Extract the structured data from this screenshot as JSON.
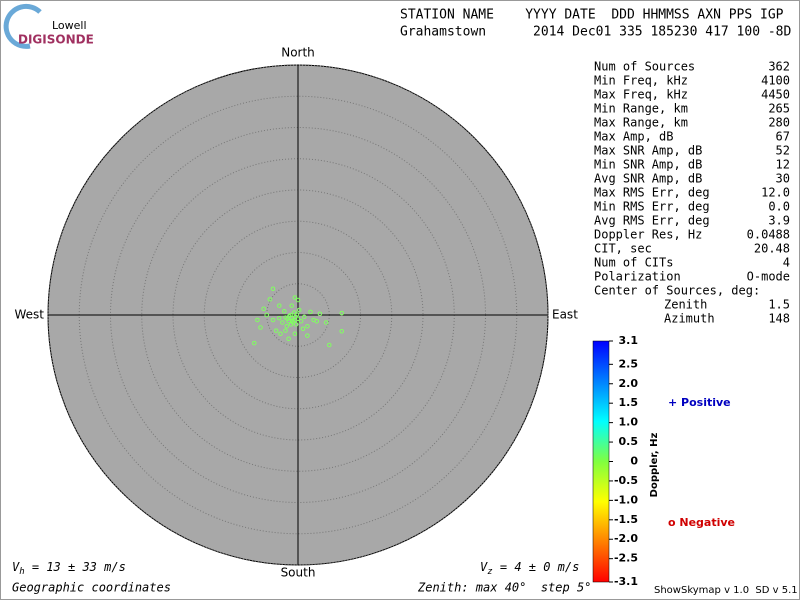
{
  "logo": {
    "top": "Lowell",
    "bottom": "DIGISONDE"
  },
  "header": {
    "columns": "STATION NAME    YYYY DATE  DDD HHMMSS AXN PPS IGP",
    "values": "Grahamstown      2014 Dec01 335 185230 417 100 -8D"
  },
  "stats": [
    [
      "Num of Sources",
      "362"
    ],
    [
      "Min Freq, kHz",
      "4100"
    ],
    [
      "Max Freq, kHz",
      "4450"
    ],
    [
      "Min Range, km",
      "265"
    ],
    [
      "Max Range, km",
      "280"
    ],
    [
      "Max Amp, dB",
      "67"
    ],
    [
      "Max SNR Amp, dB",
      "52"
    ],
    [
      "Min SNR Amp, dB",
      "12"
    ],
    [
      "Avg SNR Amp, dB",
      "30"
    ],
    [
      "Max RMS Err, deg",
      "12.0"
    ],
    [
      "Min RMS Err, deg",
      "0.0"
    ],
    [
      "Avg RMS Err, deg",
      "3.9"
    ],
    [
      "Doppler Res, Hz",
      "0.0488"
    ],
    [
      "CIT, sec",
      "20.48"
    ],
    [
      "Num of CITs",
      "4"
    ],
    [
      "Polarization",
      "O-mode"
    ]
  ],
  "center": {
    "title": "Center of Sources, deg:",
    "rows": [
      [
        "Zenith",
        "1.5"
      ],
      [
        "Azimuth",
        "148"
      ]
    ]
  },
  "chart_data": {
    "type": "scatter",
    "directions": {
      "north": "North",
      "south": "South",
      "east": "East",
      "west": "West"
    },
    "rlim": [
      0,
      40
    ],
    "rticks": [
      5,
      10,
      15,
      20,
      25,
      30,
      35,
      40
    ],
    "color": "#80ff60",
    "x": [
      -1,
      -0.5,
      -1.5,
      -0.8,
      0,
      -2,
      -1.2,
      -0.3,
      -2.5,
      0.5,
      -1.8,
      -3,
      1,
      -0.6,
      -2.2,
      0.2,
      -4,
      -5,
      -6,
      -7,
      -3.5,
      1.5,
      2.5,
      3,
      4.5,
      7,
      7,
      5,
      1.5,
      -0.5,
      -1.5,
      -4.5,
      -4,
      -0.5,
      0,
      -3,
      -5.5,
      -6.5,
      -2.8,
      2,
      3.5,
      0.8,
      -1,
      -2,
      -0.2,
      -1.4,
      -0.9,
      -0.4,
      -1.7,
      -1.1
    ],
    "y": [
      -0.5,
      -0.8,
      -1,
      -1.2,
      -0.6,
      -0.4,
      0,
      -1.5,
      -1.2,
      -1,
      -1.8,
      -0.5,
      -0.3,
      0.4,
      0.6,
      0.8,
      -0.8,
      0,
      -2,
      -4.5,
      -2.5,
      -1.8,
      -0.8,
      -1,
      -1.2,
      0.3,
      -2.6,
      -4.8,
      -3.3,
      -3,
      -3.8,
      2.5,
      4.2,
      2.8,
      2.4,
      1.5,
      1,
      -0.8,
      -3,
      0.5,
      0.2,
      -2.2,
      1.5,
      -2.5,
      0.1,
      -0.2,
      -0.9,
      -0.3,
      -0.6,
      -1.5
    ]
  },
  "colorbar": {
    "label": "Doppler, Hz",
    "ylim": [
      -3.1,
      3.1
    ],
    "ticks": [
      3.1,
      2.5,
      {
        "value": 2,
        "label": "2.0"
      },
      1.5,
      {
        "value": 1,
        "label": "1.0"
      },
      0.5,
      0,
      -0.5,
      {
        "value": -1,
        "label": "-1.0"
      },
      -1.5,
      {
        "value": -2,
        "label": "-2.0"
      },
      -2.5,
      -3.1
    ]
  },
  "legend": {
    "positive": "+ Positive",
    "negative": "o Negative"
  },
  "footer": {
    "vh": [
      "V",
      "h",
      " = 13 ± 33 m/s"
    ],
    "vz": [
      "V",
      "z",
      " = 4 ± 0 m/s"
    ],
    "coords": "Geographic coordinates",
    "zenith": "Zenith: max 40°  step 5°",
    "version": "ShowSkymap v 1.0  SD v 5.1"
  }
}
